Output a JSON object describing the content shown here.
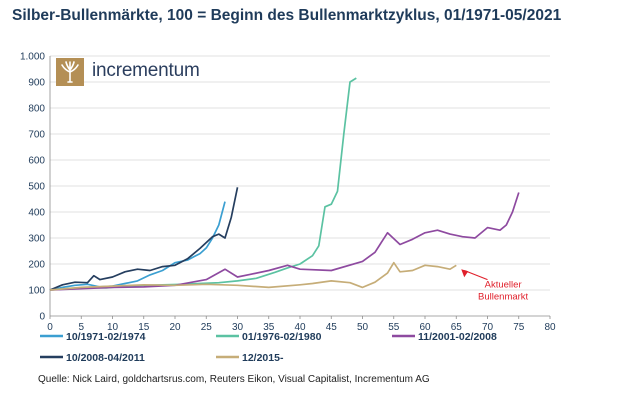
{
  "title": "Silber-Bullenmärkte, 100 = Beginn des Bullenmarktzyklus, 01/1971-05/2021",
  "logo": {
    "text": "incrementum",
    "icon": "tree-icon"
  },
  "source": "Quelle: Nick Laird, goldchartsrus.com, Reuters Eikon, Visual Capitalist, Incrementum AG",
  "annotation": {
    "line1": "Aktueller",
    "line2": "Bullenmarkt",
    "color": "#e0202b"
  },
  "chart_data": {
    "type": "line",
    "title": "Silber-Bullenmärkte, 100 = Beginn des Bullenmarktzyklus, 01/1971-05/2021",
    "xlim": [
      0,
      80
    ],
    "ylim": [
      0,
      1000
    ],
    "x_ticks": [
      0,
      5,
      10,
      15,
      20,
      25,
      30,
      35,
      40,
      45,
      50,
      55,
      60,
      65,
      70,
      75,
      80
    ],
    "y_ticks": [
      0,
      100,
      200,
      300,
      400,
      500,
      600,
      700,
      800,
      900,
      1000
    ],
    "y_tick_labels": [
      "0",
      "100",
      "200",
      "300",
      "400",
      "500",
      "600",
      "700",
      "800",
      "900",
      "1.000"
    ],
    "legend_position": "bottom",
    "series": [
      {
        "name": "10/1971-02/1974",
        "color": "#3b9fd1",
        "x": [
          0,
          2,
          4,
          6,
          8,
          10,
          12,
          14,
          16,
          18,
          20,
          22,
          23,
          24,
          25,
          26,
          27,
          28
        ],
        "y": [
          100,
          110,
          118,
          122,
          112,
          115,
          125,
          135,
          158,
          175,
          205,
          215,
          228,
          240,
          262,
          300,
          350,
          440
        ]
      },
      {
        "name": "01/1976-02/1980",
        "color": "#5bc2a2",
        "x": [
          0,
          3,
          6,
          9,
          12,
          15,
          18,
          21,
          24,
          27,
          30,
          33,
          36,
          38,
          40,
          42,
          43,
          44,
          45,
          46,
          47,
          48,
          49
        ],
        "y": [
          100,
          105,
          110,
          108,
          115,
          118,
          120,
          122,
          125,
          128,
          135,
          145,
          168,
          185,
          200,
          232,
          270,
          420,
          430,
          480,
          700,
          900,
          915
        ]
      },
      {
        "name": "11/2001-02/2008",
        "color": "#8e4aa0",
        "x": [
          0,
          5,
          10,
          15,
          20,
          25,
          28,
          30,
          32,
          35,
          38,
          40,
          45,
          50,
          52,
          54,
          56,
          58,
          60,
          62,
          64,
          66,
          68,
          70,
          72,
          73,
          74,
          75
        ],
        "y": [
          100,
          105,
          110,
          112,
          118,
          140,
          180,
          150,
          160,
          175,
          195,
          180,
          175,
          210,
          245,
          320,
          275,
          295,
          320,
          330,
          315,
          305,
          300,
          340,
          330,
          350,
          400,
          475
        ]
      },
      {
        "name": "10/2008-04/2011",
        "color": "#253e5f",
        "x": [
          0,
          2,
          4,
          6,
          7,
          8,
          10,
          12,
          14,
          16,
          18,
          20,
          22,
          24,
          26,
          27,
          28,
          29,
          30
        ],
        "y": [
          100,
          120,
          130,
          128,
          155,
          140,
          150,
          170,
          180,
          175,
          190,
          195,
          220,
          260,
          305,
          315,
          300,
          380,
          495
        ]
      },
      {
        "name": "12/2015-",
        "color": "#c6ad78",
        "x": [
          0,
          5,
          10,
          15,
          20,
          25,
          30,
          35,
          40,
          42,
          45,
          48,
          50,
          52,
          54,
          55,
          56,
          58,
          60,
          62,
          64,
          65
        ],
        "y": [
          100,
          110,
          115,
          120,
          118,
          122,
          118,
          110,
          120,
          125,
          135,
          128,
          110,
          130,
          165,
          205,
          170,
          175,
          195,
          190,
          180,
          195
        ]
      }
    ]
  }
}
